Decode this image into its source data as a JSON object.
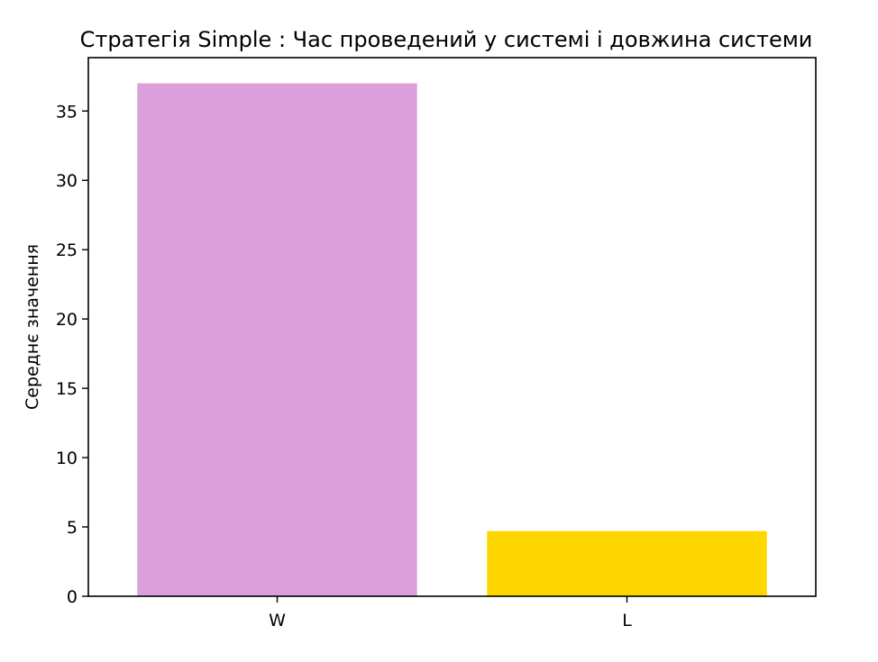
{
  "chart_data": {
    "type": "bar",
    "title": "Стратегія Simple : Час проведений у системі і довжина системи",
    "xlabel": "",
    "ylabel": "Середнє значення",
    "categories": [
      "W",
      "L"
    ],
    "values": [
      37.0,
      4.7
    ],
    "colors": [
      "#dda0dd",
      "#ffd700"
    ],
    "ylim": [
      0,
      38.85
    ],
    "yticks": [
      0,
      5,
      10,
      15,
      20,
      25,
      30,
      35
    ],
    "grid": false,
    "legend": "none"
  }
}
